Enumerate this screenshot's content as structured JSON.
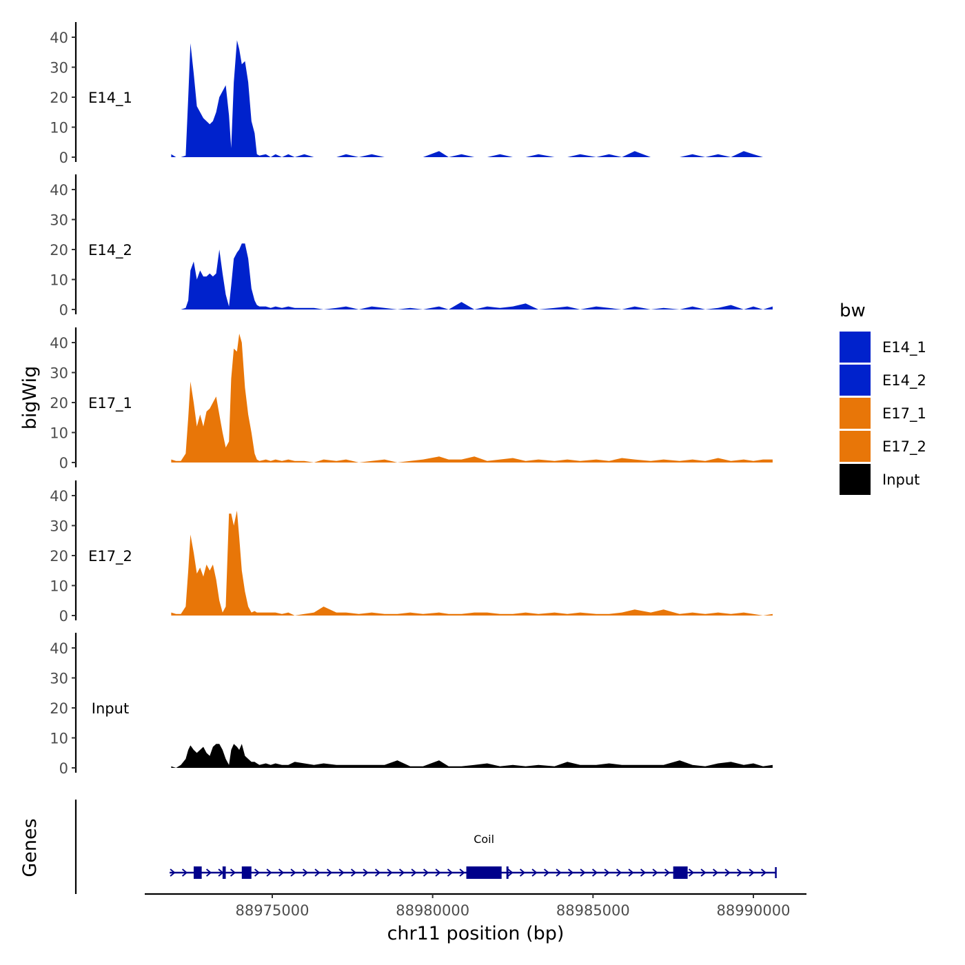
{
  "chart_data": {
    "type": "area",
    "title": "",
    "xlabel": "chr11 position (bp)",
    "ylabel": "bigWig",
    "genes_label": "Genes",
    "xlim": [
      88971600,
      88991300
    ],
    "ylim": [
      0,
      45
    ],
    "x_ticks": [
      88975000,
      88980000,
      88985000,
      88990000
    ],
    "x_tick_labels": [
      "88975000",
      "88980000",
      "88985000",
      "88990000"
    ],
    "y_ticks": [
      0,
      10,
      20,
      30,
      40
    ],
    "y_tick_labels": [
      "0",
      "10",
      "20",
      "30",
      "40"
    ],
    "legend": {
      "title": "bw",
      "position": "right",
      "entries": [
        {
          "label": "E14_1",
          "color": "#0022CC"
        },
        {
          "label": "E14_2",
          "color": "#0022CC"
        },
        {
          "label": "E17_1",
          "color": "#E87608"
        },
        {
          "label": "E17_2",
          "color": "#E87608"
        },
        {
          "label": "Input",
          "color": "#000000"
        }
      ]
    },
    "series": [
      {
        "name": "E14_1",
        "color": "#0022CC",
        "x": [
          88971850,
          88972000,
          88972150,
          88972300,
          88972380,
          88972450,
          88972550,
          88972650,
          88972750,
          88972850,
          88972950,
          88973050,
          88973150,
          88973250,
          88973350,
          88973450,
          88973550,
          88973650,
          88973720,
          88973800,
          88973900,
          88973970,
          88974050,
          88974150,
          88974250,
          88974350,
          88974450,
          88974520,
          88974600,
          88974800,
          88974950,
          88975100,
          88975300,
          88975500,
          88975700,
          88976000,
          88976300,
          88976600,
          88977000,
          88977300,
          88977700,
          88978100,
          88978500,
          88978900,
          88979300,
          88979700,
          88980200,
          88980500,
          88980900,
          88981300,
          88981700,
          88982100,
          88982500,
          88982900,
          88983300,
          88983800,
          88984200,
          88984600,
          88985100,
          88985500,
          88985900,
          88986300,
          88986800,
          88987200,
          88987700,
          88988100,
          88988500,
          88988900,
          88989300,
          88989700,
          88990000,
          88990300,
          88990600
        ],
        "values": [
          1,
          0,
          0,
          0.5,
          20,
          38,
          28,
          17,
          15,
          13,
          12,
          11,
          12,
          15,
          20,
          22,
          24,
          14,
          3,
          25,
          39,
          36,
          31,
          32,
          25,
          12,
          8,
          1,
          0.5,
          1,
          0,
          1,
          0,
          1,
          0,
          1,
          0,
          0,
          0,
          1,
          0,
          1,
          0,
          0,
          0,
          0,
          2,
          0,
          1,
          0,
          0,
          1,
          0,
          0,
          1,
          0,
          0,
          1,
          0,
          1,
          0,
          2,
          0,
          0,
          0,
          1,
          0,
          1,
          0,
          2,
          1,
          0,
          0
        ]
      },
      {
        "name": "E14_2",
        "color": "#0022CC",
        "x": [
          88971850,
          88972000,
          88972150,
          88972300,
          88972380,
          88972450,
          88972550,
          88972650,
          88972750,
          88972850,
          88972950,
          88973050,
          88973150,
          88973250,
          88973350,
          88973450,
          88973550,
          88973650,
          88973720,
          88973800,
          88973900,
          88973970,
          88974050,
          88974150,
          88974250,
          88974350,
          88974450,
          88974520,
          88974600,
          88974800,
          88974950,
          88975100,
          88975300,
          88975500,
          88975700,
          88976000,
          88976300,
          88976600,
          88977000,
          88977300,
          88977700,
          88978100,
          88978500,
          88978900,
          88979300,
          88979700,
          88980200,
          88980500,
          88980900,
          88981300,
          88981700,
          88982100,
          88982500,
          88982900,
          88983300,
          88983800,
          88984200,
          88984600,
          88985100,
          88985500,
          88985900,
          88986300,
          88986800,
          88987200,
          88987700,
          88988100,
          88988500,
          88988900,
          88989300,
          88989700,
          88990000,
          88990300,
          88990600
        ],
        "values": [
          0,
          0,
          0,
          0.5,
          3,
          13,
          16,
          10,
          13,
          11,
          11,
          12,
          11,
          12,
          20,
          12,
          5,
          1,
          8,
          17,
          19,
          20,
          22,
          22,
          17,
          7,
          3,
          1.5,
          1,
          1,
          0.5,
          1,
          0.5,
          1,
          0.5,
          0.5,
          0.5,
          0,
          0.5,
          1,
          0,
          1,
          0.5,
          0,
          0.5,
          0,
          1,
          0,
          2.5,
          0,
          1,
          0.5,
          1,
          2,
          0,
          0.5,
          1,
          0,
          1,
          0.5,
          0,
          1,
          0,
          0.5,
          0,
          1,
          0,
          0.5,
          1.5,
          0,
          1,
          0,
          1
        ]
      },
      {
        "name": "E17_1",
        "color": "#E87608",
        "x": [
          88971850,
          88972000,
          88972150,
          88972300,
          88972380,
          88972450,
          88972550,
          88972650,
          88972750,
          88972850,
          88972950,
          88973050,
          88973150,
          88973250,
          88973350,
          88973450,
          88973550,
          88973650,
          88973720,
          88973800,
          88973900,
          88973970,
          88974050,
          88974150,
          88974250,
          88974350,
          88974450,
          88974520,
          88974600,
          88974800,
          88974950,
          88975100,
          88975300,
          88975500,
          88975700,
          88976000,
          88976300,
          88976600,
          88977000,
          88977300,
          88977700,
          88978100,
          88978500,
          88978900,
          88979300,
          88979700,
          88980200,
          88980500,
          88980900,
          88981300,
          88981700,
          88982100,
          88982500,
          88982900,
          88983300,
          88983800,
          88984200,
          88984600,
          88985100,
          88985500,
          88985900,
          88986300,
          88986800,
          88987200,
          88987700,
          88988100,
          88988500,
          88988900,
          88989300,
          88989700,
          88990000,
          88990300,
          88990600
        ],
        "values": [
          1,
          0.5,
          0.5,
          3,
          15,
          27,
          20,
          12,
          16,
          12,
          17,
          18,
          20,
          22,
          16,
          10,
          5,
          7,
          28,
          38,
          37,
          43,
          40,
          25,
          16,
          10,
          3,
          1,
          0.5,
          1,
          0.5,
          1,
          0.5,
          1,
          0.5,
          0.5,
          0,
          1,
          0.5,
          1,
          0,
          0.5,
          1,
          0,
          0.5,
          1,
          2,
          1,
          1,
          2,
          0.5,
          1,
          1.5,
          0.5,
          1,
          0.5,
          1,
          0.5,
          1,
          0.5,
          1.5,
          1,
          0.5,
          1,
          0.5,
          1,
          0.5,
          1.5,
          0.5,
          1,
          0.5,
          1,
          1
        ]
      },
      {
        "name": "E17_2",
        "color": "#E87608",
        "x": [
          88971850,
          88972000,
          88972150,
          88972300,
          88972380,
          88972450,
          88972550,
          88972650,
          88972750,
          88972850,
          88972950,
          88973050,
          88973150,
          88973250,
          88973350,
          88973450,
          88973550,
          88973650,
          88973720,
          88973800,
          88973900,
          88973970,
          88974050,
          88974150,
          88974250,
          88974350,
          88974450,
          88974520,
          88974600,
          88974800,
          88974950,
          88975100,
          88975300,
          88975500,
          88975700,
          88976000,
          88976300,
          88976600,
          88977000,
          88977300,
          88977700,
          88978100,
          88978500,
          88978900,
          88979300,
          88979700,
          88980200,
          88980500,
          88980900,
          88981300,
          88981700,
          88982100,
          88982500,
          88982900,
          88983300,
          88983800,
          88984200,
          88984600,
          88985100,
          88985500,
          88985900,
          88986300,
          88986800,
          88987200,
          88987700,
          88988100,
          88988500,
          88988900,
          88989300,
          88989700,
          88990000,
          88990300,
          88990600
        ],
        "values": [
          1,
          0.5,
          0.5,
          3,
          15,
          27,
          21,
          14,
          16,
          13,
          17,
          15,
          17,
          12,
          5,
          1,
          3,
          34,
          34,
          30,
          35,
          26,
          15,
          8,
          3,
          1,
          1.5,
          1,
          1,
          1,
          1,
          1,
          0.5,
          1,
          0,
          0.5,
          1,
          3,
          1,
          1,
          0.5,
          1,
          0.5,
          0.5,
          1,
          0.5,
          1,
          0.5,
          0.5,
          1,
          1,
          0.5,
          0.5,
          1,
          0.5,
          1,
          0.5,
          1,
          0.5,
          0.5,
          1,
          2,
          1,
          2,
          0.5,
          1,
          0.5,
          1,
          0.5,
          1,
          0.5,
          0,
          0.5
        ]
      },
      {
        "name": "Input",
        "color": "#000000",
        "x": [
          88971850,
          88972000,
          88972150,
          88972300,
          88972380,
          88972450,
          88972550,
          88972650,
          88972750,
          88972850,
          88972950,
          88973050,
          88973150,
          88973250,
          88973350,
          88973450,
          88973550,
          88973650,
          88973720,
          88973800,
          88973900,
          88973970,
          88974050,
          88974150,
          88974250,
          88974350,
          88974450,
          88974520,
          88974600,
          88974800,
          88974950,
          88975100,
          88975300,
          88975500,
          88975700,
          88976000,
          88976300,
          88976600,
          88977000,
          88977300,
          88977700,
          88978100,
          88978500,
          88978900,
          88979300,
          88979700,
          88980200,
          88980500,
          88980900,
          88981300,
          88981700,
          88982100,
          88982500,
          88982900,
          88983300,
          88983800,
          88984200,
          88984600,
          88985100,
          88985500,
          88985900,
          88986300,
          88986800,
          88987200,
          88987700,
          88988100,
          88988500,
          88988900,
          88989300,
          88989700,
          88990000,
          88990300,
          88990600
        ],
        "values": [
          0.5,
          0,
          1,
          3,
          6,
          7.5,
          6,
          5,
          6,
          7,
          5,
          4,
          7,
          8,
          8,
          6,
          3,
          1,
          6,
          8,
          7,
          6,
          8,
          4,
          3,
          2,
          2,
          1.5,
          1,
          1.5,
          1,
          1.5,
          1,
          1,
          2,
          1.5,
          1,
          1.5,
          1,
          1,
          1,
          1,
          1,
          2.5,
          0.5,
          0.5,
          2.5,
          0.5,
          0.5,
          1,
          1.5,
          0.5,
          1,
          0.5,
          1,
          0.5,
          2,
          1,
          1,
          1.5,
          1,
          1,
          1,
          1,
          2.5,
          1,
          0.5,
          1.5,
          2,
          1,
          1.5,
          0.5,
          1
        ]
      }
    ],
    "genes": [
      {
        "name": "Coil",
        "strand": "+",
        "start": 88971800,
        "end": 88990700,
        "exons": [
          [
            88972550,
            88972800
          ],
          [
            88973450,
            88973550
          ],
          [
            88974050,
            88974350
          ],
          [
            88981050,
            88982150
          ],
          [
            88982300,
            88982350
          ],
          [
            88987500,
            88987950
          ]
        ]
      }
    ]
  }
}
